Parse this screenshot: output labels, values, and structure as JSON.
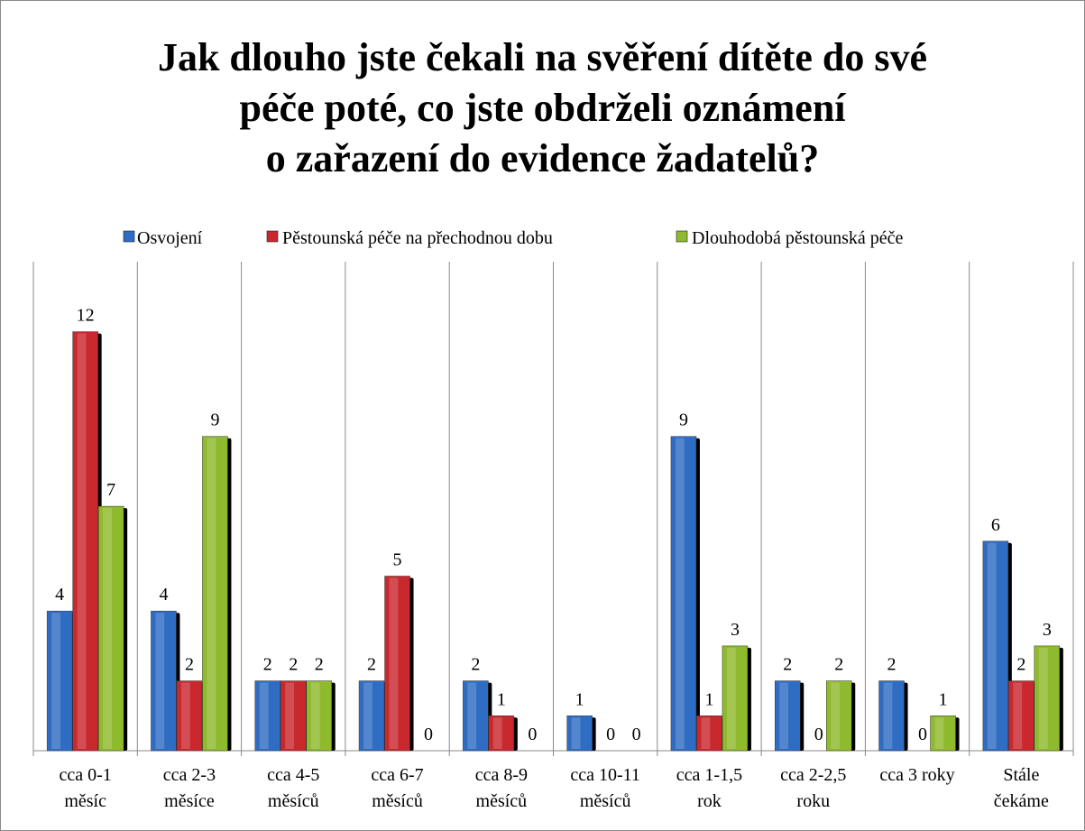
{
  "chart_data": {
    "type": "bar",
    "title": "Jak dlouho jste čekali na svěření dítěte do své\npéče poté, co jste obdrželi oznámení\no zařazení do evidence žadatelů?",
    "categories": [
      "cca 0-1 měsíc",
      "cca 2-3 měsíce",
      "cca 4-5 měsíců",
      "cca 6-7 měsíců",
      "cca 8-9 měsíců",
      "cca 10-11 měsíců",
      "cca 1-1,5 rok",
      "cca 2-2,5 roku",
      "cca 3 roky",
      "Stále čekáme"
    ],
    "series": [
      {
        "name": "Osvojení",
        "color": "#2f6cc4",
        "values": [
          4,
          4,
          2,
          2,
          2,
          1,
          9,
          2,
          2,
          6
        ]
      },
      {
        "name": "Pěstounská péče na přechodnou dobu",
        "color": "#c9282e",
        "values": [
          12,
          2,
          2,
          5,
          1,
          0,
          1,
          0,
          0,
          2
        ]
      },
      {
        "name": "Dlouhodobá pěstounská péče",
        "color": "#8fba2e",
        "values": [
          7,
          9,
          2,
          0,
          0,
          0,
          3,
          2,
          1,
          3
        ]
      }
    ],
    "legend": "top"
  }
}
